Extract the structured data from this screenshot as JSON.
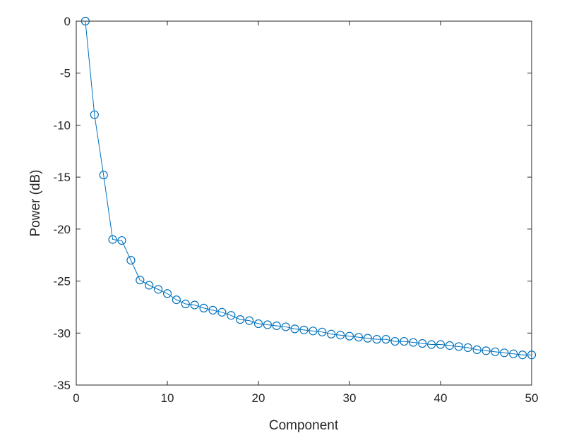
{
  "chart_data": {
    "type": "line",
    "title": "",
    "xlabel": "Component",
    "ylabel": "Power (dB)",
    "xlim": [
      0,
      50
    ],
    "ylim": [
      -35,
      0
    ],
    "xticks": [
      0,
      10,
      20,
      30,
      40,
      50
    ],
    "yticks": [
      0,
      -5,
      -10,
      -15,
      -20,
      -25,
      -30,
      -35
    ],
    "grid": false,
    "series": [
      {
        "color": "#0072bd",
        "marker": "circle",
        "x": [
          1,
          2,
          3,
          4,
          5,
          6,
          7,
          8,
          9,
          10,
          11,
          12,
          13,
          14,
          15,
          16,
          17,
          18,
          19,
          20,
          21,
          22,
          23,
          24,
          25,
          26,
          27,
          28,
          29,
          30,
          31,
          32,
          33,
          34,
          35,
          36,
          37,
          38,
          39,
          40,
          41,
          42,
          43,
          44,
          45,
          46,
          47,
          48,
          49,
          50
        ],
        "y": [
          0,
          -9.0,
          -14.8,
          -21.0,
          -21.1,
          -23.0,
          -24.9,
          -25.4,
          -25.8,
          -26.2,
          -26.8,
          -27.2,
          -27.3,
          -27.6,
          -27.8,
          -28.0,
          -28.3,
          -28.7,
          -28.8,
          -29.1,
          -29.2,
          -29.3,
          -29.4,
          -29.6,
          -29.7,
          -29.8,
          -29.9,
          -30.1,
          -30.2,
          -30.3,
          -30.4,
          -30.5,
          -30.6,
          -30.6,
          -30.8,
          -30.8,
          -30.9,
          -31.0,
          -31.1,
          -31.1,
          -31.2,
          -31.3,
          -31.4,
          -31.6,
          -31.7,
          -31.8,
          -31.9,
          -32.0,
          -32.1,
          -32.1
        ]
      }
    ]
  }
}
